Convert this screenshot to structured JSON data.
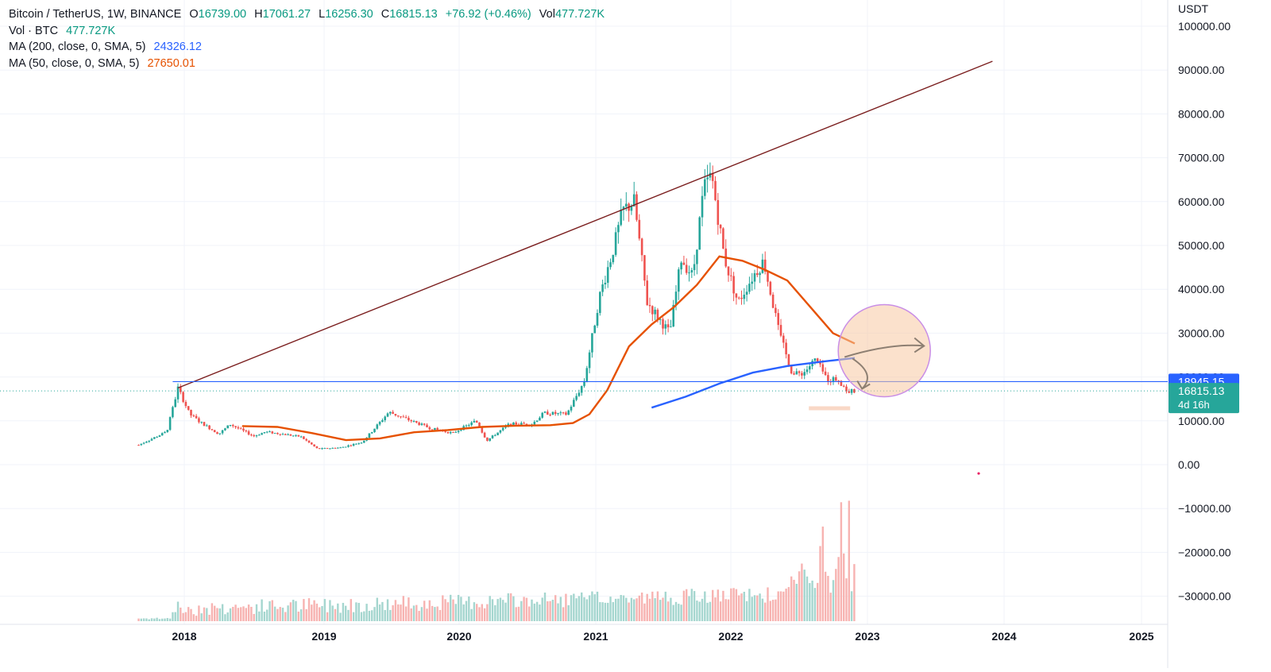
{
  "chart_data": {
    "type": "candlestick",
    "symbol_line": {
      "title": "Bitcoin / TetherUS, 1W, BINANCE",
      "o_label": "O",
      "o_value": "16739.00",
      "h_label": "H",
      "h_value": "17061.27",
      "l_label": "L",
      "l_value": "16256.30",
      "c_label": "C",
      "c_value": "16815.13",
      "change": "+76.92 (+0.46%)",
      "vol_label": "Vol",
      "vol_value": "477.727K"
    },
    "indicators": [
      {
        "label": "Vol · BTC",
        "value": "477.727K",
        "color": "#089981"
      },
      {
        "label": "MA (200, close, 0, SMA, 5)",
        "value": "24326.12",
        "color": "#2962ff"
      },
      {
        "label": "MA (50, close, 0, SMA, 5)",
        "value": "27650.01",
        "color": "#e65100"
      }
    ],
    "y_axis": {
      "unit": "USDT",
      "ticks": [
        "100000.00",
        "90000.00",
        "80000.00",
        "70000.00",
        "60000.00",
        "50000.00",
        "40000.00",
        "30000.00",
        "20000.00",
        "10000.00",
        "0.00",
        "−10000.00",
        "−20000.00",
        "−30000.00"
      ],
      "tick_values": [
        100000,
        90000,
        80000,
        70000,
        60000,
        50000,
        40000,
        30000,
        20000,
        10000,
        0,
        -10000,
        -20000,
        -30000
      ]
    },
    "x_axis": {
      "ticks": [
        "2018",
        "2019",
        "2020",
        "2021",
        "2022",
        "2023",
        "2024",
        "2025"
      ]
    },
    "price_labels": [
      {
        "text": "18945.15",
        "value": 18945.15,
        "color": "#2962ff"
      },
      {
        "text": "16815.13",
        "subtext": "4d 16h",
        "value": 16815.13,
        "color": "#26a69a"
      }
    ],
    "anchors": [
      {
        "date": "2017-09-01",
        "price": 4500
      },
      {
        "date": "2017-11-15",
        "price": 7500
      },
      {
        "date": "2017-12-15",
        "price": 17500
      },
      {
        "date": "2018-01-15",
        "price": 11500
      },
      {
        "date": "2018-02-15",
        "price": 9500
      },
      {
        "date": "2018-04-01",
        "price": 7000
      },
      {
        "date": "2018-05-01",
        "price": 9200
      },
      {
        "date": "2018-07-01",
        "price": 6500
      },
      {
        "date": "2018-08-01",
        "price": 7500
      },
      {
        "date": "2018-11-01",
        "price": 6400
      },
      {
        "date": "2018-12-15",
        "price": 3600
      },
      {
        "date": "2019-02-15",
        "price": 3900
      },
      {
        "date": "2019-04-15",
        "price": 5200
      },
      {
        "date": "2019-06-25",
        "price": 12000
      },
      {
        "date": "2019-08-15",
        "price": 10300
      },
      {
        "date": "2019-10-15",
        "price": 8300
      },
      {
        "date": "2019-12-15",
        "price": 7200
      },
      {
        "date": "2020-02-15",
        "price": 10000
      },
      {
        "date": "2020-03-15",
        "price": 5500
      },
      {
        "date": "2020-05-15",
        "price": 9300
      },
      {
        "date": "2020-07-15",
        "price": 9300
      },
      {
        "date": "2020-08-15",
        "price": 11800
      },
      {
        "date": "2020-10-15",
        "price": 11500
      },
      {
        "date": "2020-12-01",
        "price": 19000
      },
      {
        "date": "2021-01-10",
        "price": 38000
      },
      {
        "date": "2021-02-20",
        "price": 50000
      },
      {
        "date": "2021-03-15",
        "price": 58000
      },
      {
        "date": "2021-04-15",
        "price": 60000
      },
      {
        "date": "2021-05-20",
        "price": 37000
      },
      {
        "date": "2021-07-20",
        "price": 30000
      },
      {
        "date": "2021-08-20",
        "price": 47000
      },
      {
        "date": "2021-09-20",
        "price": 43000
      },
      {
        "date": "2021-10-20",
        "price": 63000
      },
      {
        "date": "2021-11-10",
        "price": 66000
      },
      {
        "date": "2021-12-15",
        "price": 47000
      },
      {
        "date": "2022-01-20",
        "price": 37000
      },
      {
        "date": "2022-03-01",
        "price": 43000
      },
      {
        "date": "2022-03-30",
        "price": 46500
      },
      {
        "date": "2022-05-10",
        "price": 30000
      },
      {
        "date": "2022-06-15",
        "price": 20500
      },
      {
        "date": "2022-07-15",
        "price": 21000
      },
      {
        "date": "2022-08-15",
        "price": 24000
      },
      {
        "date": "2022-09-15",
        "price": 19500
      },
      {
        "date": "2022-10-15",
        "price": 19500
      },
      {
        "date": "2022-11-10",
        "price": 16500
      },
      {
        "date": "2022-11-28",
        "price": 16815
      }
    ],
    "ma50": [
      {
        "date": "2018-06-01",
        "price": 8800
      },
      {
        "date": "2018-09-01",
        "price": 8600
      },
      {
        "date": "2018-12-01",
        "price": 7200
      },
      {
        "date": "2019-03-01",
        "price": 5600
      },
      {
        "date": "2019-06-01",
        "price": 6000
      },
      {
        "date": "2019-09-01",
        "price": 7400
      },
      {
        "date": "2019-12-01",
        "price": 7900
      },
      {
        "date": "2020-03-01",
        "price": 8600
      },
      {
        "date": "2020-06-01",
        "price": 8900
      },
      {
        "date": "2020-09-01",
        "price": 9000
      },
      {
        "date": "2020-11-01",
        "price": 9500
      },
      {
        "date": "2020-12-15",
        "price": 11500
      },
      {
        "date": "2021-02-01",
        "price": 17000
      },
      {
        "date": "2021-04-01",
        "price": 27000
      },
      {
        "date": "2021-06-01",
        "price": 32000
      },
      {
        "date": "2021-08-01",
        "price": 36000
      },
      {
        "date": "2021-10-01",
        "price": 41000
      },
      {
        "date": "2021-12-01",
        "price": 47500
      },
      {
        "date": "2022-02-01",
        "price": 46500
      },
      {
        "date": "2022-04-01",
        "price": 44500
      },
      {
        "date": "2022-06-01",
        "price": 42000
      },
      {
        "date": "2022-08-01",
        "price": 36000
      },
      {
        "date": "2022-10-01",
        "price": 30000
      },
      {
        "date": "2022-11-28",
        "price": 27650
      }
    ],
    "ma200": [
      {
        "date": "2021-06-01",
        "price": 13000
      },
      {
        "date": "2021-09-01",
        "price": 15500
      },
      {
        "date": "2021-12-01",
        "price": 18500
      },
      {
        "date": "2022-03-01",
        "price": 21000
      },
      {
        "date": "2022-06-01",
        "price": 22500
      },
      {
        "date": "2022-09-01",
        "price": 23500
      },
      {
        "date": "2022-11-28",
        "price": 24326
      }
    ],
    "trendline": {
      "from": {
        "date": "2017-12-15",
        "price": 17500
      },
      "to": {
        "date": "2023-12-01",
        "price": 92000
      },
      "color": "#7b1f1f"
    },
    "hline": {
      "price": 18945.15,
      "from_date": "2017-12-01",
      "color": "#2962ff"
    },
    "circle": {
      "center": {
        "date": "2023-02-15",
        "price": 26000
      },
      "color": "#f5c8a0"
    }
  }
}
